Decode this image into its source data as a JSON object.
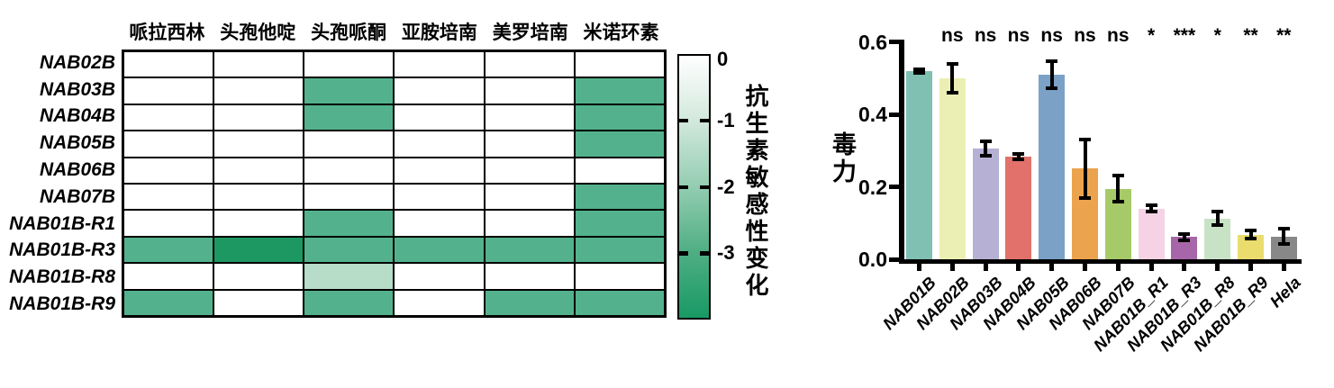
{
  "chart_data": [
    {
      "type": "heatmap",
      "panel": "antibiotic-sensitivity-heatmap",
      "x_categories": [
        "哌拉西林",
        "头孢他啶",
        "头孢哌酮",
        "亚胺培南",
        "美罗培南",
        "米诺环素"
      ],
      "y_categories": [
        "NAB02B",
        "NAB03B",
        "NAB04B",
        "NAB05B",
        "NAB06B",
        "NAB07B",
        "NAB01B-R1",
        "NAB01B-R3",
        "NAB01B-R8",
        "NAB01B-R9"
      ],
      "values": [
        [
          0,
          0,
          0,
          0,
          0,
          0
        ],
        [
          0,
          0,
          -3,
          0,
          0,
          -3
        ],
        [
          0,
          0,
          -3,
          0,
          0,
          -3
        ],
        [
          0,
          0,
          0,
          0,
          0,
          -3
        ],
        [
          0,
          0,
          0,
          0,
          0,
          0
        ],
        [
          0,
          0,
          0,
          0,
          0,
          -3
        ],
        [
          0,
          0,
          -3,
          0,
          0,
          -3
        ],
        [
          -3,
          -4,
          -3,
          -3,
          -3,
          -3
        ],
        [
          0,
          0,
          -1,
          0,
          0,
          0
        ],
        [
          -3,
          0,
          -3,
          0,
          -3,
          -3
        ]
      ],
      "value_colors": {
        "0": "#ffffff",
        "-1": "#b7dcc7",
        "-3": "#53b28d",
        "-4": "#1e9863"
      },
      "colorbar": {
        "tick_labels": [
          "0",
          "-1",
          "-2",
          "-3"
        ],
        "label": "抗生素敏感性变化",
        "range_top": 0,
        "range_bottom": -4,
        "gradient": [
          "#ffffff",
          "#d2e8dc",
          "#93cdb1",
          "#4fae83",
          "#189a65"
        ]
      }
    },
    {
      "type": "bar",
      "panel": "toxicity-barchart",
      "ylabel": "毒力",
      "ylim": [
        0.0,
        0.6
      ],
      "ytick_labels": [
        "0.6",
        "0.4",
        "0.2",
        "0.0"
      ],
      "ytick_values": [
        0.6,
        0.4,
        0.2,
        0.0
      ],
      "grid": false,
      "categories": [
        "NAB01B",
        "NAB02B",
        "NAB03B",
        "NAB04B",
        "NAB05B",
        "NAB06B",
        "NAB07B",
        "NAB01B_R1",
        "NAB01B_R3",
        "NAB01B_R8",
        "NAB01B_R9",
        "Hela"
      ],
      "values": [
        0.52,
        0.5,
        0.305,
        0.283,
        0.51,
        0.25,
        0.195,
        0.14,
        0.061,
        0.113,
        0.068,
        0.063
      ],
      "errors": [
        0.005,
        0.04,
        0.02,
        0.008,
        0.037,
        0.08,
        0.035,
        0.008,
        0.008,
        0.018,
        0.012,
        0.022
      ],
      "significance": [
        "",
        "ns",
        "ns",
        "ns",
        "ns",
        "ns",
        "ns",
        "*",
        "***",
        "*",
        "**",
        "**"
      ],
      "bar_colors": [
        "#7fc0b2",
        "#ebefb3",
        "#b5b0d4",
        "#e1716a",
        "#7ba1c7",
        "#eca34e",
        "#a6ca68",
        "#f6d3e4",
        "#a766a9",
        "#c8e2c5",
        "#eadd6e",
        "#888888"
      ]
    }
  ]
}
